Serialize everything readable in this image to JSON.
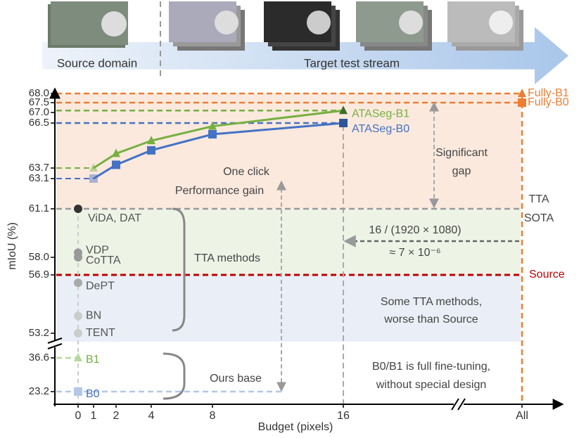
{
  "banner": {
    "source": "Source domain",
    "target": "Target test stream"
  },
  "chart_data": {
    "type": "line",
    "xlabel": "Budget (pixels)",
    "ylabel": "mIoU (%)",
    "xticks": [
      0,
      1,
      2,
      4,
      8,
      16,
      "All"
    ],
    "yticks": [
      {
        "value": 68,
        "label": "68.0"
      },
      67.5,
      {
        "value": 67,
        "label": "67.0"
      },
      66.5,
      63.7,
      63.1,
      61.1,
      {
        "value": 58,
        "label": "58.0"
      },
      56.9,
      53.2,
      36.6,
      23.2
    ],
    "series": [
      {
        "name": "ATASeg-B1",
        "color": "#76b041",
        "marker": "triangle",
        "x": [
          1,
          2,
          4,
          8,
          16
        ],
        "values": [
          63.7,
          64.6,
          65.4,
          66.3,
          67.1
        ]
      },
      {
        "name": "ATASeg-B0",
        "color": "#4472c4",
        "marker": "square",
        "x": [
          1,
          2,
          4,
          8,
          16
        ],
        "values": [
          63.1,
          63.9,
          64.8,
          65.8,
          66.5
        ]
      }
    ],
    "points": [
      {
        "label": "Fully-B1",
        "x": "All",
        "value": 68.0,
        "color": "#ed7d31",
        "marker": "triangle"
      },
      {
        "label": "Fully-B0",
        "x": "All",
        "value": 67.5,
        "color": "#ed7d31",
        "marker": "square"
      },
      {
        "label": "ViDA, DAT",
        "x": 0,
        "value": 61.1,
        "color": "#333333",
        "marker": "circle"
      },
      {
        "label": "VDP",
        "x": 0,
        "value": 58.3,
        "color": "#999999",
        "marker": "circle"
      },
      {
        "label": "CoTTA",
        "x": 0,
        "value": 58.0,
        "color": "#999999",
        "marker": "circle"
      },
      {
        "label": "DePT",
        "x": 0,
        "value": 56.4,
        "color": "#aaaaaa",
        "marker": "circle"
      },
      {
        "label": "BN",
        "x": 0,
        "value": 54.3,
        "color": "#cccccc",
        "marker": "circle"
      },
      {
        "label": "TENT",
        "x": 0,
        "value": 53.2,
        "color": "#cccccc",
        "marker": "circle"
      },
      {
        "label": "B1",
        "x": 0,
        "value": 36.6,
        "color": "#b5d99c",
        "marker": "triangle"
      },
      {
        "label": "B0",
        "x": 0,
        "value": 23.2,
        "color": "#b4c7e7",
        "marker": "square"
      }
    ],
    "source": {
      "label": "Source",
      "value": 56.9,
      "color": "#c00000"
    },
    "annotations": {
      "one_click": "One click",
      "performance_gain": "Performance gain",
      "significant_gap": [
        "Significant",
        "gap"
      ],
      "tta_sota": [
        "TTA",
        "SOTA"
      ],
      "tta_methods": "TTA methods",
      "ours_base": "Ours base",
      "budget_ratio": [
        "16 / (1920 × 1080)",
        "≈ 7 × 10⁻⁶"
      ],
      "worse": [
        "Some TTA methods,",
        "worse than Source"
      ],
      "full_ft": [
        "B0/B1 is full fine-tuning,",
        "without special design"
      ]
    }
  }
}
